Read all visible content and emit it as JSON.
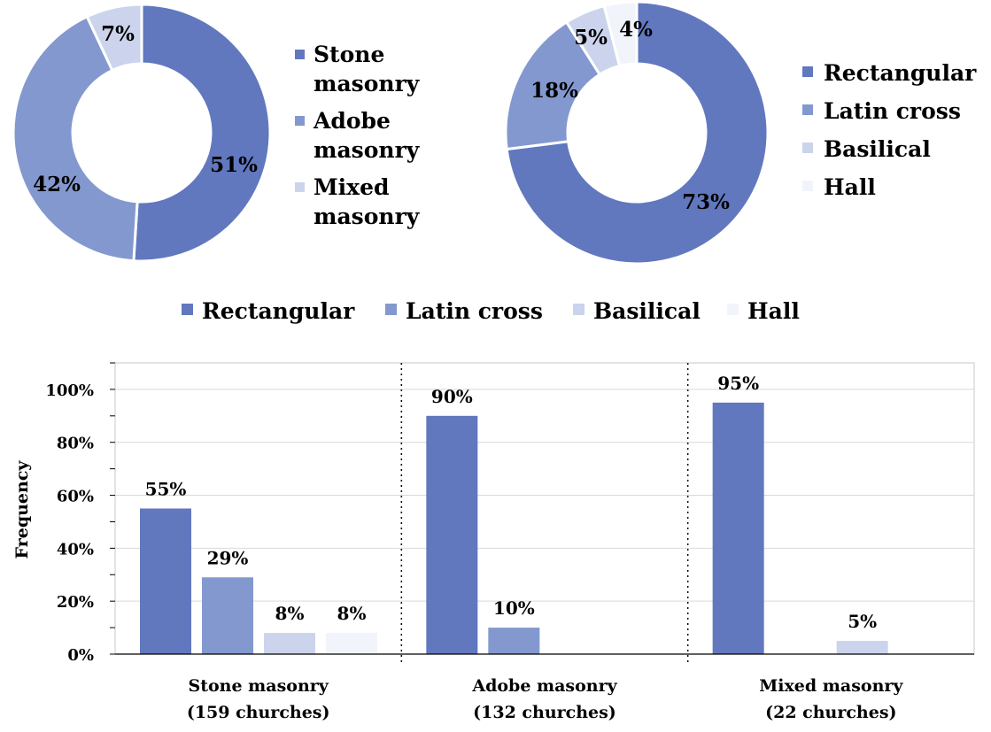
{
  "colors": {
    "rectangular": "#6178bf",
    "latin_cross": "#8398cf",
    "basilical": "#cbd4ec",
    "hall": "#f1f4fa",
    "stone": "#6178bf",
    "adobe": "#8398cf",
    "mixed": "#cbd4ec"
  },
  "chart_data": [
    {
      "type": "pie",
      "donut": true,
      "labels": [
        "Stone masonry",
        "Adobe masonry",
        "Mixed masonry"
      ],
      "values": [
        51,
        42,
        7
      ],
      "data_labels": [
        "51%",
        "42%",
        "7%"
      ],
      "legend": {
        "placement": "right",
        "entries": [
          [
            "Stone",
            "masonry"
          ],
          [
            "Adobe",
            "masonry"
          ],
          [
            "Mixed",
            "masonry"
          ]
        ]
      }
    },
    {
      "type": "pie",
      "donut": true,
      "labels": [
        "Rectangular",
        "Latin cross",
        "Basilical",
        "Hall"
      ],
      "values": [
        73,
        18,
        5,
        4
      ],
      "data_labels": [
        "73%",
        "18%",
        "5%",
        "4%"
      ],
      "legend": {
        "placement": "right",
        "entries": [
          "Rectangular",
          "Latin cross",
          "Basilical",
          "Hall"
        ]
      }
    },
    {
      "type": "bar",
      "categories": [
        {
          "line1": "Stone masonry",
          "line2": "(159 churches)"
        },
        {
          "line1": "Adobe masonry",
          "line2": "(132 churches)"
        },
        {
          "line1": "Mixed masonry",
          "line2": "(22 churches)"
        }
      ],
      "series": [
        {
          "name": "Rectangular",
          "values": [
            55,
            90,
            95
          ],
          "labels": [
            "55%",
            "90%",
            "95%"
          ]
        },
        {
          "name": "Latin cross",
          "values": [
            29,
            10,
            0
          ],
          "labels": [
            "29%",
            "10%",
            ""
          ]
        },
        {
          "name": "Basilical",
          "values": [
            8,
            0,
            5
          ],
          "labels": [
            "8%",
            "",
            "5%"
          ]
        },
        {
          "name": "Hall",
          "values": [
            8,
            0,
            0
          ],
          "labels": [
            "8%",
            "",
            ""
          ]
        }
      ],
      "ylabel": "Frequency",
      "ylim": [
        0,
        110
      ],
      "yticks": [
        0,
        20,
        40,
        60,
        80,
        100
      ],
      "ytick_labels": [
        "0%",
        "20%",
        "40%",
        "60%",
        "80%",
        "100%"
      ],
      "grid": true,
      "legend": {
        "placement": "top",
        "entries": [
          "Rectangular",
          "Latin cross",
          "Basilical",
          "Hall"
        ]
      }
    }
  ]
}
